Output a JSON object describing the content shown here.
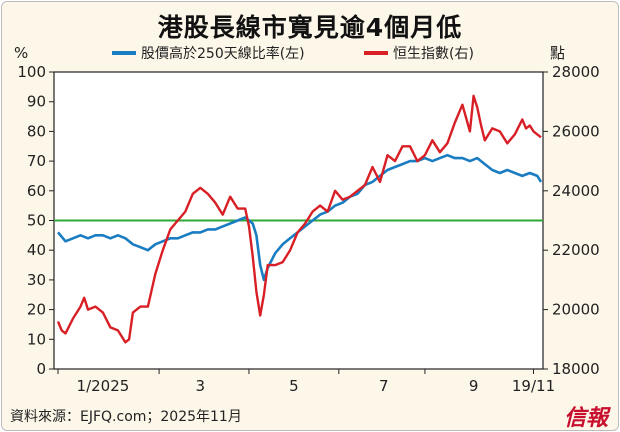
{
  "title": "港股長線市寬見逾4個月低",
  "source": "資料來源：EJFQ.com；2025年11月",
  "brand": "信報",
  "chart_data": {
    "type": "line",
    "title": "港股長線市寬見逾4個月低",
    "left_axis": {
      "unit": "%",
      "ylim": [
        0,
        100
      ],
      "ticks": [
        "0",
        "10",
        "20",
        "30",
        "40",
        "50",
        "60",
        "70",
        "80",
        "90",
        "100"
      ]
    },
    "right_axis": {
      "unit": "點",
      "ylim": [
        18000,
        28000
      ],
      "ticks": [
        "18000",
        "20000",
        "22000",
        "24000",
        "26000",
        "28000"
      ]
    },
    "x_ticks": [
      "1/2025",
      "3",
      "5",
      "7",
      "9",
      "19/11"
    ],
    "reference_line": {
      "axis": "left",
      "value": 50,
      "color": "#2ea836"
    },
    "series": [
      {
        "name": "股價高於250天線比率(左)",
        "axis": "left",
        "color": "#1a7cc1",
        "points": [
          [
            0,
            46
          ],
          [
            2,
            43
          ],
          [
            4,
            44
          ],
          [
            6,
            45
          ],
          [
            8,
            44
          ],
          [
            10,
            45
          ],
          [
            12,
            45
          ],
          [
            14,
            44
          ],
          [
            16,
            45
          ],
          [
            18,
            44
          ],
          [
            20,
            42
          ],
          [
            22,
            41
          ],
          [
            24,
            40
          ],
          [
            26,
            42
          ],
          [
            28,
            43
          ],
          [
            30,
            44
          ],
          [
            32,
            44
          ],
          [
            34,
            45
          ],
          [
            36,
            46
          ],
          [
            38,
            46
          ],
          [
            40,
            47
          ],
          [
            42,
            47
          ],
          [
            44,
            48
          ],
          [
            46,
            49
          ],
          [
            48,
            50
          ],
          [
            50,
            51
          ],
          [
            52,
            49
          ],
          [
            53,
            45
          ],
          [
            54,
            35
          ],
          [
            55,
            30
          ],
          [
            56,
            34
          ],
          [
            58,
            39
          ],
          [
            60,
            42
          ],
          [
            62,
            44
          ],
          [
            64,
            46
          ],
          [
            66,
            48
          ],
          [
            68,
            50
          ],
          [
            70,
            52
          ],
          [
            72,
            53
          ],
          [
            74,
            55
          ],
          [
            76,
            56
          ],
          [
            78,
            58
          ],
          [
            80,
            59
          ],
          [
            82,
            62
          ],
          [
            84,
            63
          ],
          [
            86,
            65
          ],
          [
            88,
            67
          ],
          [
            90,
            68
          ],
          [
            92,
            69
          ],
          [
            94,
            70
          ],
          [
            96,
            70
          ],
          [
            98,
            71
          ],
          [
            100,
            70
          ],
          [
            102,
            71
          ],
          [
            104,
            72
          ],
          [
            106,
            71
          ],
          [
            108,
            71
          ],
          [
            110,
            70
          ],
          [
            112,
            71
          ],
          [
            114,
            69
          ],
          [
            116,
            67
          ],
          [
            118,
            66
          ],
          [
            120,
            67
          ],
          [
            122,
            66
          ],
          [
            124,
            65
          ],
          [
            126,
            66
          ],
          [
            128,
            65
          ],
          [
            129,
            63
          ]
        ]
      },
      {
        "name": "恒生指數(右)",
        "axis": "right",
        "color": "#d91f26",
        "points": [
          [
            0,
            19600
          ],
          [
            1,
            19300
          ],
          [
            2,
            19200
          ],
          [
            4,
            19700
          ],
          [
            6,
            20100
          ],
          [
            7,
            20400
          ],
          [
            8,
            20000
          ],
          [
            10,
            20100
          ],
          [
            12,
            19900
          ],
          [
            14,
            19400
          ],
          [
            16,
            19300
          ],
          [
            18,
            18900
          ],
          [
            19,
            19000
          ],
          [
            20,
            19900
          ],
          [
            22,
            20100
          ],
          [
            24,
            20100
          ],
          [
            26,
            21200
          ],
          [
            28,
            22000
          ],
          [
            30,
            22700
          ],
          [
            32,
            23000
          ],
          [
            34,
            23300
          ],
          [
            36,
            23900
          ],
          [
            38,
            24100
          ],
          [
            40,
            23900
          ],
          [
            42,
            23600
          ],
          [
            44,
            23200
          ],
          [
            46,
            23800
          ],
          [
            48,
            23400
          ],
          [
            50,
            23400
          ],
          [
            51,
            22800
          ],
          [
            52,
            21800
          ],
          [
            53,
            20600
          ],
          [
            54,
            19800
          ],
          [
            55,
            20500
          ],
          [
            56,
            21500
          ],
          [
            58,
            21500
          ],
          [
            60,
            21600
          ],
          [
            62,
            22000
          ],
          [
            64,
            22600
          ],
          [
            66,
            22900
          ],
          [
            68,
            23300
          ],
          [
            70,
            23500
          ],
          [
            72,
            23300
          ],
          [
            74,
            24000
          ],
          [
            76,
            23700
          ],
          [
            78,
            23800
          ],
          [
            80,
            24000
          ],
          [
            82,
            24200
          ],
          [
            84,
            24800
          ],
          [
            86,
            24300
          ],
          [
            88,
            25200
          ],
          [
            90,
            25000
          ],
          [
            92,
            25500
          ],
          [
            94,
            25500
          ],
          [
            96,
            25000
          ],
          [
            98,
            25200
          ],
          [
            100,
            25700
          ],
          [
            102,
            25300
          ],
          [
            104,
            25600
          ],
          [
            106,
            26300
          ],
          [
            108,
            26900
          ],
          [
            110,
            26000
          ],
          [
            111,
            27200
          ],
          [
            112,
            26800
          ],
          [
            113,
            26200
          ],
          [
            114,
            25700
          ],
          [
            116,
            26100
          ],
          [
            118,
            26000
          ],
          [
            120,
            25600
          ],
          [
            122,
            25900
          ],
          [
            124,
            26400
          ],
          [
            125,
            26100
          ],
          [
            126,
            26200
          ],
          [
            127,
            26000
          ],
          [
            128,
            25900
          ],
          [
            129,
            25800
          ]
        ]
      }
    ],
    "grid": false,
    "legend": "top"
  }
}
